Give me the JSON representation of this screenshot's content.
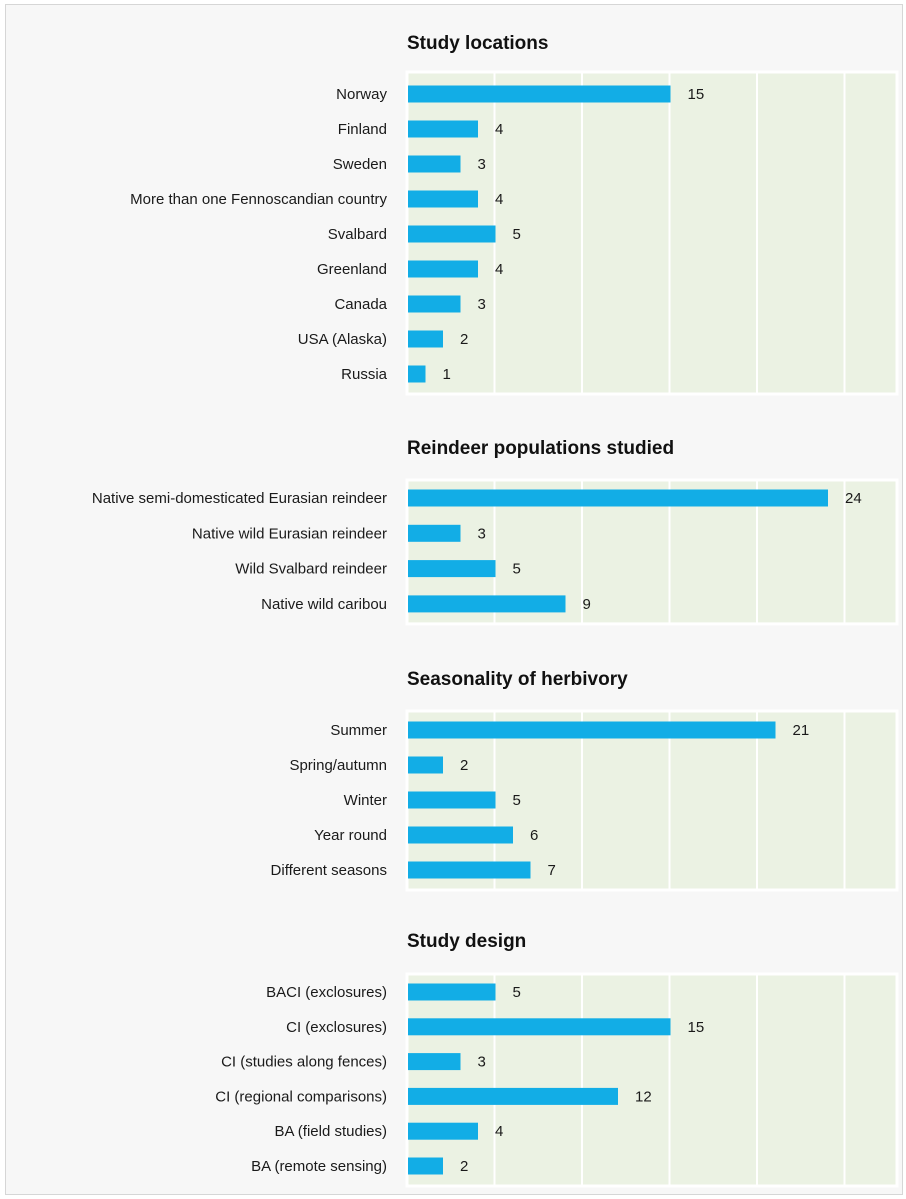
{
  "colors": {
    "bar": "#12ADE6",
    "plot_background": "#EBF2E3",
    "gridline": "#FFFFFF",
    "page_background": "#F7F7F7"
  },
  "chart_data": [
    {
      "type": "bar",
      "orientation": "horizontal",
      "title": "Study locations",
      "categories": [
        "Norway",
        "Finland",
        "Sweden",
        "More than one Fennoscandian country",
        "Svalbard",
        "Greenland",
        "Canada",
        "USA (Alaska)",
        "Russia"
      ],
      "values": [
        15,
        4,
        3,
        4,
        5,
        4,
        3,
        2,
        1
      ],
      "xlim": [
        0,
        28
      ],
      "grid": true
    },
    {
      "type": "bar",
      "orientation": "horizontal",
      "title": "Reindeer populations studied",
      "categories": [
        "Native semi-domesticated Eurasian reindeer",
        "Native wild Eurasian reindeer",
        "Wild Svalbard reindeer",
        "Native wild caribou"
      ],
      "values": [
        24,
        3,
        5,
        9
      ],
      "xlim": [
        0,
        28
      ],
      "grid": true
    },
    {
      "type": "bar",
      "orientation": "horizontal",
      "title": "Seasonality of herbivory",
      "categories": [
        "Summer",
        "Spring/autumn",
        "Winter",
        "Year round",
        "Different seasons"
      ],
      "values": [
        21,
        2,
        5,
        6,
        7
      ],
      "xlim": [
        0,
        28
      ],
      "grid": true
    },
    {
      "type": "bar",
      "orientation": "horizontal",
      "title": "Study design",
      "categories": [
        "BACI (exclosures)",
        "CI (exclosures)",
        "CI (studies along fences)",
        "CI (regional comparisons)",
        "BA (field studies)",
        "BA (remote sensing)"
      ],
      "values": [
        5,
        15,
        3,
        12,
        4,
        2
      ],
      "xlim": [
        0,
        28
      ],
      "grid": true
    }
  ]
}
